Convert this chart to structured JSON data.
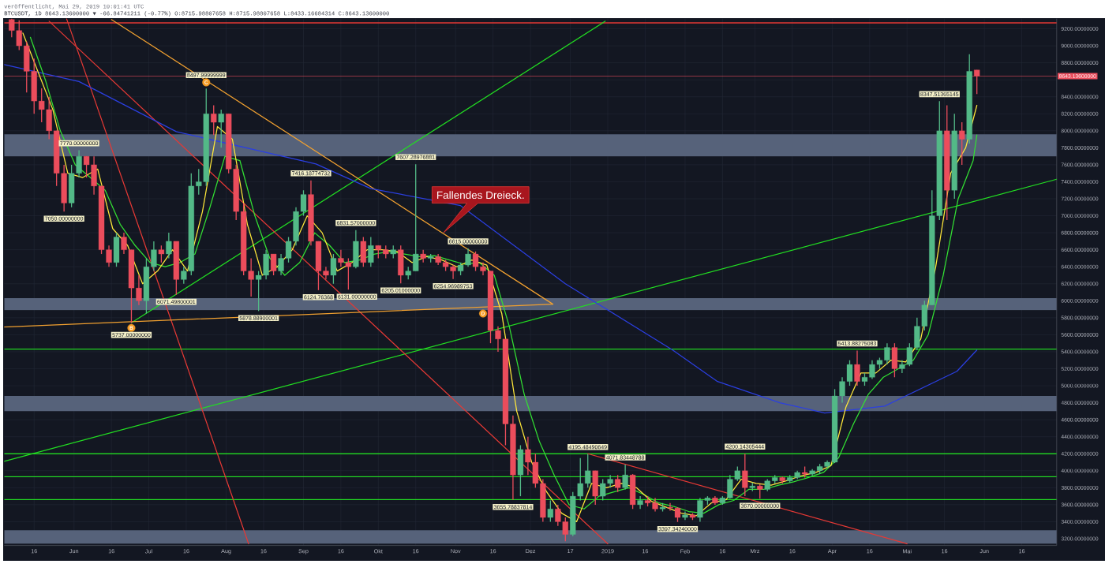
{
  "chart_data": {
    "type": "candlestick",
    "title": "veröffentlicht, Mai 29, 2019 10:01:41 UTC",
    "subtitle": "BTCUSDT, 1D 8643.13600000 ▼ -66.84741211 (-0.77%) O:8715.98807658 H:8715.98807658 L:8433.16684314 C:8643.13600000",
    "x": [
      "2018-05-07",
      "2018-05-10",
      "2018-05-13",
      "2018-05-16",
      "2018-05-19",
      "2018-05-22",
      "2018-05-25",
      "2018-05-28",
      "2018-05-31",
      "2018-06-03",
      "2018-06-06",
      "2018-06-09",
      "2018-06-12",
      "2018-06-15",
      "2018-06-18",
      "2018-06-21",
      "2018-06-24",
      "2018-06-27",
      "2018-06-30",
      "2018-07-03",
      "2018-07-06",
      "2018-07-09",
      "2018-07-12",
      "2018-07-15",
      "2018-07-18",
      "2018-07-21",
      "2018-07-24",
      "2018-07-27",
      "2018-07-30",
      "2018-08-02",
      "2018-08-05",
      "2018-08-08",
      "2018-08-11",
      "2018-08-14",
      "2018-08-17",
      "2018-08-20",
      "2018-08-23",
      "2018-08-26",
      "2018-08-29",
      "2018-09-01",
      "2018-09-04",
      "2018-09-07",
      "2018-09-10",
      "2018-09-13",
      "2018-09-16",
      "2018-09-19",
      "2018-09-22",
      "2018-09-25",
      "2018-09-28",
      "2018-10-01",
      "2018-10-04",
      "2018-10-07",
      "2018-10-10",
      "2018-10-13",
      "2018-10-16",
      "2018-10-19",
      "2018-10-22",
      "2018-10-25",
      "2018-10-28",
      "2018-10-31",
      "2018-11-03",
      "2018-11-06",
      "2018-11-09",
      "2018-11-12",
      "2018-11-15",
      "2018-11-18",
      "2018-11-21",
      "2018-11-24",
      "2018-11-27",
      "2018-11-30",
      "2018-12-03",
      "2018-12-06",
      "2018-12-09",
      "2018-12-12",
      "2018-12-15",
      "2018-12-18",
      "2018-12-21",
      "2018-12-24",
      "2018-12-27",
      "2018-12-30",
      "2019-01-02",
      "2019-01-05",
      "2019-01-08",
      "2019-01-11",
      "2019-01-14",
      "2019-01-17",
      "2019-01-20",
      "2019-01-23",
      "2019-01-26",
      "2019-01-29",
      "2019-02-01",
      "2019-02-04",
      "2019-02-07",
      "2019-02-10",
      "2019-02-13",
      "2019-02-16",
      "2019-02-19",
      "2019-02-22",
      "2019-02-25",
      "2019-02-28",
      "2019-03-03",
      "2019-03-06",
      "2019-03-09",
      "2019-03-12",
      "2019-03-15",
      "2019-03-18",
      "2019-03-21",
      "2019-03-24",
      "2019-03-27",
      "2019-03-30",
      "2019-04-02",
      "2019-04-05",
      "2019-04-08",
      "2019-04-11",
      "2019-04-14",
      "2019-04-17",
      "2019-04-20",
      "2019-04-23",
      "2019-04-26",
      "2019-04-29",
      "2019-05-02",
      "2019-05-05",
      "2019-05-08",
      "2019-05-11",
      "2019-05-14",
      "2019-05-17",
      "2019-05-20",
      "2019-05-23",
      "2019-05-26",
      "2019-05-29"
    ],
    "ohlc": [
      [
        9310,
        9320,
        9100,
        9180
      ],
      [
        9180,
        9300,
        8950,
        9000
      ],
      [
        9000,
        9050,
        8450,
        8700
      ],
      [
        8700,
        8850,
        8200,
        8350
      ],
      [
        8350,
        8500,
        8100,
        8250
      ],
      [
        8250,
        8400,
        7900,
        8000
      ],
      [
        8000,
        8000,
        7350,
        7500
      ],
      [
        7500,
        7600,
        7050,
        7150
      ],
      [
        7150,
        7600,
        7100,
        7500
      ],
      [
        7500,
        7770,
        7450,
        7700
      ],
      [
        7700,
        7700,
        7450,
        7600
      ],
      [
        7600,
        7700,
        7250,
        7350
      ],
      [
        7350,
        7350,
        6550,
        6600
      ],
      [
        6600,
        6650,
        6400,
        6450
      ],
      [
        6450,
        6800,
        6400,
        6750
      ],
      [
        6750,
        6800,
        6550,
        6600
      ],
      [
        6600,
        6600,
        5737,
        6150
      ],
      [
        6150,
        6300,
        5950,
        6000
      ],
      [
        6000,
        6500,
        5850,
        6400
      ],
      [
        6400,
        6700,
        6350,
        6600
      ],
      [
        6600,
        6650,
        6450,
        6550
      ],
      [
        6550,
        6800,
        6500,
        6700
      ],
      [
        6700,
        6700,
        6071,
        6250
      ],
      [
        6250,
        6400,
        6200,
        6350
      ],
      [
        6350,
        7500,
        6300,
        7350
      ],
      [
        7350,
        7550,
        7250,
        7400
      ],
      [
        7400,
        8498,
        7350,
        8200
      ],
      [
        8200,
        8300,
        7950,
        8100
      ],
      [
        8100,
        8250,
        7800,
        8200
      ],
      [
        8200,
        8200,
        7500,
        7550
      ],
      [
        7550,
        7600,
        6950,
        7050
      ],
      [
        7050,
        7150,
        6300,
        6350
      ],
      [
        6350,
        6500,
        6050,
        6250
      ],
      [
        6250,
        6350,
        5879,
        6300
      ],
      [
        6300,
        6600,
        6250,
        6550
      ],
      [
        6550,
        6550,
        6300,
        6350
      ],
      [
        6350,
        6550,
        6300,
        6500
      ],
      [
        6500,
        6750,
        6450,
        6700
      ],
      [
        6700,
        7100,
        6650,
        7050
      ],
      [
        7050,
        7300,
        7000,
        7250
      ],
      [
        7250,
        7416,
        6650,
        6700
      ],
      [
        6700,
        6700,
        6125,
        6350
      ],
      [
        6350,
        6400,
        6250,
        6300
      ],
      [
        6300,
        6550,
        6200,
        6500
      ],
      [
        6500,
        6600,
        6400,
        6450
      ],
      [
        6450,
        6500,
        6131,
        6400
      ],
      [
        6400,
        6832,
        6380,
        6700
      ],
      [
        6700,
        6750,
        6400,
        6450
      ],
      [
        6450,
        6750,
        6400,
        6650
      ],
      [
        6650,
        6650,
        6500,
        6600
      ],
      [
        6600,
        6650,
        6500,
        6550
      ],
      [
        6550,
        6650,
        6500,
        6600
      ],
      [
        6600,
        6650,
        6205,
        6300
      ],
      [
        6300,
        6400,
        6250,
        6350
      ],
      [
        6350,
        7607,
        6350,
        6550
      ],
      [
        6550,
        6600,
        6450,
        6500
      ],
      [
        6500,
        6550,
        6450,
        6520
      ],
      [
        6520,
        6550,
        6420,
        6450
      ],
      [
        6450,
        6480,
        6350,
        6400
      ],
      [
        6400,
        6420,
        6255,
        6350
      ],
      [
        6350,
        6450,
        6300,
        6420
      ],
      [
        6420,
        6615,
        6400,
        6550
      ],
      [
        6550,
        6580,
        6350,
        6400
      ],
      [
        6400,
        6450,
        6300,
        6350
      ],
      [
        6350,
        6350,
        5500,
        5650
      ],
      [
        5650,
        5700,
        5400,
        5550
      ],
      [
        5550,
        5550,
        4300,
        4550
      ],
      [
        4550,
        4650,
        3656,
        3950
      ],
      [
        3950,
        4300,
        3700,
        4250
      ],
      [
        4250,
        4400,
        3950,
        4100
      ],
      [
        4100,
        4200,
        3800,
        3850
      ],
      [
        3850,
        3900,
        3400,
        3450
      ],
      [
        3450,
        3650,
        3400,
        3550
      ],
      [
        3550,
        3600,
        3350,
        3400
      ],
      [
        3400,
        3450,
        3170,
        3250
      ],
      [
        3250,
        3750,
        3230,
        3700
      ],
      [
        3700,
        4150,
        3650,
        3850
      ],
      [
        3850,
        4195,
        3800,
        4000
      ],
      [
        4000,
        4000,
        3600,
        3700
      ],
      [
        3700,
        3900,
        3650,
        3850
      ],
      [
        3850,
        3950,
        3800,
        3900
      ],
      [
        3900,
        3950,
        3750,
        3800
      ],
      [
        3800,
        4072,
        3780,
        3950
      ],
      [
        3950,
        3960,
        3550,
        3600
      ],
      [
        3600,
        3700,
        3550,
        3650
      ],
      [
        3650,
        3700,
        3580,
        3620
      ],
      [
        3620,
        3680,
        3520,
        3550
      ],
      [
        3550,
        3620,
        3520,
        3570
      ],
      [
        3570,
        3620,
        3530,
        3560
      ],
      [
        3560,
        3570,
        3397,
        3450
      ],
      [
        3450,
        3520,
        3420,
        3480
      ],
      [
        3480,
        3500,
        3420,
        3450
      ],
      [
        3450,
        3680,
        3400,
        3650
      ],
      [
        3650,
        3700,
        3600,
        3680
      ],
      [
        3680,
        3700,
        3600,
        3620
      ],
      [
        3620,
        3700,
        3600,
        3680
      ],
      [
        3680,
        3950,
        3670,
        3900
      ],
      [
        3900,
        4050,
        3880,
        4000
      ],
      [
        4000,
        4200,
        3700,
        3800
      ],
      [
        3800,
        3860,
        3760,
        3820
      ],
      [
        3820,
        3840,
        3670,
        3780
      ],
      [
        3780,
        3900,
        3760,
        3880
      ],
      [
        3880,
        3950,
        3850,
        3920
      ],
      [
        3920,
        3930,
        3850,
        3880
      ],
      [
        3880,
        3950,
        3860,
        3920
      ],
      [
        3920,
        4000,
        3900,
        3980
      ],
      [
        3980,
        4050,
        3920,
        3960
      ],
      [
        3960,
        4020,
        3940,
        4000
      ],
      [
        4000,
        4080,
        3960,
        4050
      ],
      [
        4050,
        4120,
        4030,
        4100
      ],
      [
        4100,
        4960,
        4090,
        4880
      ],
      [
        4880,
        5100,
        4800,
        5050
      ],
      [
        5050,
        5300,
        5000,
        5250
      ],
      [
        5250,
        5414,
        5000,
        5050
      ],
      [
        5050,
        5150,
        5000,
        5100
      ],
      [
        5100,
        5300,
        5080,
        5250
      ],
      [
        5250,
        5330,
        5200,
        5300
      ],
      [
        5300,
        5500,
        5250,
        5450
      ],
      [
        5450,
        5500,
        5100,
        5200
      ],
      [
        5200,
        5300,
        5150,
        5250
      ],
      [
        5250,
        5500,
        5230,
        5450
      ],
      [
        5450,
        5800,
        5420,
        5700
      ],
      [
        5700,
        6000,
        5650,
        5950
      ],
      [
        5950,
        7300,
        5950,
        7000
      ],
      [
        7000,
        8348,
        6950,
        8000
      ],
      [
        8000,
        8300,
        6950,
        7300
      ],
      [
        7300,
        8200,
        7200,
        8000
      ],
      [
        8000,
        8100,
        7600,
        7900
      ],
      [
        7900,
        8900,
        7850,
        8700
      ],
      [
        8716,
        8716,
        8433,
        8643
      ]
    ],
    "colors": [
      "#eb4d5c",
      "#eb4d5c",
      "#eb4d5c",
      "#eb4d5c",
      "#eb4d5c",
      "#eb4d5c",
      "#eb4d5c",
      "#eb4d5c",
      "#53b987",
      "#53b987",
      "#eb4d5c",
      "#eb4d5c",
      "#eb4d5c",
      "#eb4d5c",
      "#53b987",
      "#eb4d5c",
      "#eb4d5c",
      "#eb4d5c",
      "#53b987",
      "#53b987",
      "#eb4d5c",
      "#53b987",
      "#eb4d5c",
      "#53b987",
      "#53b987",
      "#53b987",
      "#53b987",
      "#eb4d5c",
      "#53b987",
      "#eb4d5c",
      "#eb4d5c",
      "#eb4d5c",
      "#eb4d5c",
      "#53b987",
      "#53b987",
      "#eb4d5c",
      "#53b987",
      "#53b987",
      "#53b987",
      "#53b987",
      "#eb4d5c",
      "#eb4d5c",
      "#eb4d5c",
      "#53b987",
      "#eb4d5c",
      "#eb4d5c",
      "#53b987",
      "#eb4d5c",
      "#53b987",
      "#eb4d5c",
      "#eb4d5c",
      "#53b987",
      "#eb4d5c",
      "#53b987",
      "#53b987",
      "#eb4d5c",
      "#53b987",
      "#eb4d5c",
      "#eb4d5c",
      "#eb4d5c",
      "#53b987",
      "#53b987",
      "#eb4d5c",
      "#eb4d5c",
      "#eb4d5c",
      "#eb4d5c",
      "#eb4d5c",
      "#eb4d5c",
      "#53b987",
      "#eb4d5c",
      "#eb4d5c",
      "#eb4d5c",
      "#53b987",
      "#eb4d5c",
      "#eb4d5c",
      "#53b987",
      "#53b987",
      "#53b987",
      "#eb4d5c",
      "#53b987",
      "#53b987",
      "#eb4d5c",
      "#53b987",
      "#eb4d5c",
      "#53b987",
      "#eb4d5c",
      "#eb4d5c",
      "#53b987",
      "#eb4d5c",
      "#eb4d5c",
      "#53b987",
      "#eb4d5c",
      "#53b987",
      "#53b987",
      "#eb4d5c",
      "#53b987",
      "#53b987",
      "#53b987",
      "#eb4d5c",
      "#53b987",
      "#eb4d5c",
      "#53b987",
      "#53b987",
      "#eb4d5c",
      "#53b987",
      "#53b987",
      "#eb4d5c",
      "#53b987",
      "#53b987",
      "#53b987",
      "#53b987",
      "#53b987",
      "#53b987",
      "#eb4d5c",
      "#53b987",
      "#53b987",
      "#53b987",
      "#53b987",
      "#eb4d5c",
      "#53b987",
      "#53b987",
      "#53b987",
      "#53b987",
      "#53b987",
      "#53b987",
      "#eb4d5c",
      "#53b987",
      "#eb4d5c",
      "#53b987",
      "#eb4d5c"
    ],
    "series": [
      {
        "type": "line",
        "x": [
          "2018-05-04",
          "2019-06-30"
        ],
        "values": [
          4110,
          7430
        ],
        "color": "#22dd22"
      },
      {
        "type": "line",
        "x": [
          "2018-06-24",
          "2018-12-31"
        ],
        "values": [
          5740,
          9290
        ],
        "color": "#22dd22"
      },
      {
        "type": "line",
        "x": [
          "2018-05-29",
          "2018-08-10"
        ],
        "values": [
          9320,
          3140
        ],
        "color": "#e53935"
      },
      {
        "type": "line",
        "x": [
          "2018-05-22",
          "2019-01-01"
        ],
        "values": [
          9290,
          3140
        ],
        "color": "#e53935"
      },
      {
        "type": "line",
        "x": [
          "2018-12-24",
          "2019-05-01"
        ],
        "values": [
          4200,
          3140
        ],
        "color": "#e53935"
      },
      {
        "type": "line",
        "x": [
          "2018-06-16",
          "2018-12-10"
        ],
        "values": [
          9310,
          5960
        ],
        "color": "#f0a030"
      },
      {
        "type": "line",
        "x": [
          "2018-05-04",
          "2018-12-10"
        ],
        "values": [
          5690,
          5960
        ],
        "color": "#f0a030"
      },
      {
        "type": "line",
        "x": [
          "2018-05-04",
          "2018-06-03",
          "2018-07-12",
          "2018-09-06",
          "2018-09-28",
          "2018-11-03",
          "2018-12-15",
          "2019-01-27",
          "2019-02-14",
          "2019-03-11",
          "2019-03-29",
          "2019-04-22",
          "2019-05-21",
          "2019-05-29"
        ],
        "values": [
          8780,
          8580,
          7990,
          7610,
          7320,
          7120,
          6200,
          5420,
          5050,
          4800,
          4680,
          4760,
          5170,
          5420
        ],
        "color": "#2b3fe0"
      },
      {
        "type": "line",
        "x": [
          "2018-05-14T12:00",
          "2018-05-20T12:00",
          "2018-05-26T12:00",
          "2018-06-01T12:00",
          "2018-06-07T12:00",
          "2018-06-13T12:00",
          "2018-06-19T12:00",
          "2018-06-25T12:00",
          "2018-07-01T12:00",
          "2018-07-07T12:00",
          "2018-07-13T12:00",
          "2018-07-19T12:00",
          "2018-07-25T12:00",
          "2018-07-31T12:00",
          "2018-08-06T12:00",
          "2018-08-12T12:00",
          "2018-08-18T12:00",
          "2018-08-24T12:00",
          "2018-08-30T12:00",
          "2018-09-05T12:00",
          "2018-09-11T12:00",
          "2018-09-17T12:00",
          "2018-09-23T12:00",
          "2018-09-29T12:00",
          "2018-10-05T12:00",
          "2018-10-11T12:00",
          "2018-10-17T12:00",
          "2018-10-23T12:00",
          "2018-10-29T12:00",
          "2018-11-04T12:00",
          "2018-11-10T12:00",
          "2018-11-16T12:00",
          "2018-11-22T12:00",
          "2018-11-28T12:00",
          "2018-12-04T12:00",
          "2018-12-10T12:00",
          "2018-12-16T12:00",
          "2018-12-22T12:00",
          "2018-12-28T12:00",
          "2019-01-03T12:00",
          "2019-01-09T12:00",
          "2019-01-15T12:00",
          "2019-01-21T12:00",
          "2019-01-27T12:00",
          "2019-02-02T12:00",
          "2019-02-08T12:00",
          "2019-02-14T12:00",
          "2019-02-20T12:00",
          "2019-02-26T12:00",
          "2019-03-04T12:00",
          "2019-03-10T12:00",
          "2019-03-16T12:00",
          "2019-03-22T12:00",
          "2019-03-28T12:00",
          "2019-04-03T12:00",
          "2019-04-09T12:00",
          "2019-04-15T12:00",
          "2019-04-21T12:00",
          "2019-04-27T12:00",
          "2019-05-03T12:00",
          "2019-05-09T12:00",
          "2019-05-15T12:00",
          "2019-05-21T12:00",
          "2019-05-27T12:00",
          "2019-05-29"
        ],
        "values": [
          9100,
          8600,
          8000,
          7600,
          7450,
          7300,
          6900,
          6650,
          6450,
          6400,
          6450,
          6550,
          7100,
          7700,
          7650,
          7000,
          6500,
          6300,
          6450,
          6800,
          6650,
          6450,
          6480,
          6550,
          6580,
          6550,
          6520,
          6530,
          6480,
          6430,
          6450,
          6300,
          5700,
          4900,
          4350,
          3950,
          3600,
          3550,
          3700,
          3750,
          3800,
          3720,
          3620,
          3580,
          3520,
          3500,
          3600,
          3650,
          3780,
          3780,
          3830,
          3870,
          3920,
          3980,
          4150,
          4550,
          4900,
          5100,
          5200,
          5300,
          5600,
          6300,
          7200,
          7650,
          7950
        ],
        "color": "#33e033"
      },
      {
        "type": "line",
        "x": [
          "2018-05-11T12:00",
          "2018-05-17T12:00",
          "2018-05-23T12:00",
          "2018-05-29T12:00",
          "2018-06-04T12:00",
          "2018-06-10T12:00",
          "2018-06-16T12:00",
          "2018-06-22T12:00",
          "2018-06-28T12:00",
          "2018-07-04T12:00",
          "2018-07-10T12:00",
          "2018-07-16T12:00",
          "2018-07-22T12:00",
          "2018-07-28T12:00",
          "2018-08-03T12:00",
          "2018-08-09T12:00",
          "2018-08-15T12:00",
          "2018-08-21T12:00",
          "2018-08-27T12:00",
          "2018-09-02T12:00",
          "2018-09-08T12:00",
          "2018-09-14T12:00",
          "2018-09-20T12:00",
          "2018-09-26T12:00",
          "2018-10-02T12:00",
          "2018-10-08T12:00",
          "2018-10-14T12:00",
          "2018-10-20T12:00",
          "2018-10-26T12:00",
          "2018-11-01T12:00",
          "2018-11-07T12:00",
          "2018-11-13T12:00",
          "2018-11-19T12:00",
          "2018-11-25T12:00",
          "2018-12-01T12:00",
          "2018-12-07T12:00",
          "2018-12-13T12:00",
          "2018-12-19T12:00",
          "2018-12-25T12:00",
          "2018-12-31T12:00",
          "2019-01-06T12:00",
          "2019-01-12T12:00",
          "2019-01-18T12:00",
          "2019-01-24T12:00",
          "2019-01-30T12:00",
          "2019-02-05T12:00",
          "2019-02-11T12:00",
          "2019-02-17T12:00",
          "2019-02-23T12:00",
          "2019-03-01T12:00",
          "2019-03-07T12:00",
          "2019-03-13T12:00",
          "2019-03-19T12:00",
          "2019-03-25T12:00",
          "2019-03-31T12:00",
          "2019-04-06T12:00",
          "2019-04-12T12:00",
          "2019-04-18T12:00",
          "2019-04-24T12:00",
          "2019-04-30T12:00",
          "2019-05-06T12:00",
          "2019-05-12T12:00",
          "2019-05-18T12:00",
          "2019-05-24T12:00",
          "2019-05-29"
        ],
        "values": [
          9150,
          8700,
          8250,
          7500,
          7450,
          7550,
          6850,
          6650,
          6200,
          6350,
          6600,
          6350,
          7050,
          8050,
          7900,
          6900,
          6300,
          6400,
          6600,
          7000,
          6800,
          6350,
          6450,
          6600,
          6600,
          6580,
          6450,
          6520,
          6480,
          6400,
          6480,
          6420,
          5850,
          4700,
          4100,
          3750,
          3500,
          3400,
          3850,
          3800,
          3850,
          3800,
          3640,
          3570,
          3500,
          3470,
          3620,
          3660,
          3900,
          3850,
          3830,
          3880,
          3940,
          3980,
          4060,
          4750,
          5150,
          5150,
          5300,
          5280,
          5550,
          6400,
          7500,
          7800,
          8300
        ],
        "color": "#ffe83a"
      },
      {
        "type": "scatter",
        "name": "B",
        "x": [
          "2018-06-24"
        ],
        "values": [
          5680
        ],
        "color": "#f59b23",
        "marker": "circle"
      },
      {
        "type": "scatter",
        "name": "C",
        "x": [
          "2018-07-24"
        ],
        "values": [
          8570
        ],
        "color": "#f59b23",
        "marker": "circle"
      },
      {
        "type": "scatter",
        "name": "D",
        "x": [
          "2018-11-12"
        ],
        "values": [
          5850
        ],
        "color": "#f59b23",
        "marker": "circle"
      }
    ],
    "xlim": [
      "2018-05-04",
      "2019-06-30"
    ],
    "ylim": [
      3120,
      9320
    ],
    "xticks": [
      {
        "value": "2018-05-16",
        "label": "16"
      },
      {
        "value": "2018-06-01",
        "label": "Jun"
      },
      {
        "value": "2018-06-16",
        "label": "16"
      },
      {
        "value": "2018-07-01",
        "label": "Jul"
      },
      {
        "value": "2018-07-16",
        "label": "16"
      },
      {
        "value": "2018-08-01",
        "label": "Aug"
      },
      {
        "value": "2018-08-16",
        "label": "16"
      },
      {
        "value": "2018-09-01",
        "label": "Sep"
      },
      {
        "value": "2018-09-16",
        "label": "16"
      },
      {
        "value": "2018-10-01",
        "label": "Okt"
      },
      {
        "value": "2018-10-16",
        "label": "16"
      },
      {
        "value": "2018-11-01",
        "label": "Nov"
      },
      {
        "value": "2018-11-16",
        "label": "16"
      },
      {
        "value": "2018-12-01",
        "label": "Dez"
      },
      {
        "value": "2018-12-17",
        "label": "17"
      },
      {
        "value": "2019-01-01",
        "label": "2019"
      },
      {
        "value": "2019-01-16",
        "label": "16"
      },
      {
        "value": "2019-02-01",
        "label": "Feb"
      },
      {
        "value": "2019-02-16",
        "label": "16"
      },
      {
        "value": "2019-03-01",
        "label": "Mrz"
      },
      {
        "value": "2019-03-16",
        "label": "16"
      },
      {
        "value": "2019-04-01",
        "label": "Apr"
      },
      {
        "value": "2019-04-16",
        "label": "16"
      },
      {
        "value": "2019-05-01",
        "label": "Mai"
      },
      {
        "value": "2019-05-16",
        "label": "16"
      },
      {
        "value": "2019-06-01",
        "label": "Jun"
      },
      {
        "value": "2019-06-16",
        "label": "16"
      }
    ],
    "yticks": [
      {
        "value": 3200,
        "label": "3200.00000000"
      },
      {
        "value": 3400,
        "label": "3400.00000000"
      },
      {
        "value": 3600,
        "label": "3600.00000000"
      },
      {
        "value": 3800,
        "label": "3800.00000000"
      },
      {
        "value": 4000,
        "label": "4000.00000000"
      },
      {
        "value": 4200,
        "label": "4200.00000000"
      },
      {
        "value": 4400,
        "label": "4400.00000000"
      },
      {
        "value": 4600,
        "label": "4600.00000000"
      },
      {
        "value": 4800,
        "label": "4800.00000000"
      },
      {
        "value": 5000,
        "label": "5000.00000000"
      },
      {
        "value": 5200,
        "label": "5200.00000000"
      },
      {
        "value": 5400,
        "label": "5400.00000000"
      },
      {
        "value": 5600,
        "label": "5600.00000000"
      },
      {
        "value": 5800,
        "label": "5800.00000000"
      },
      {
        "value": 6000,
        "label": "6000.00000000"
      },
      {
        "value": 6200,
        "label": "6200.00000000"
      },
      {
        "value": 6400,
        "label": "6400.00000000"
      },
      {
        "value": 6600,
        "label": "6600.00000000"
      },
      {
        "value": 6800,
        "label": "6800.00000000"
      },
      {
        "value": 7000,
        "label": "7000.00000000"
      },
      {
        "value": 7200,
        "label": "7200.00000000"
      },
      {
        "value": 7400,
        "label": "7400.00000000"
      },
      {
        "value": 7600,
        "label": "7600.00000000"
      },
      {
        "value": 7800,
        "label": "7800.00000000"
      },
      {
        "value": 8000,
        "label": "8000.00000000"
      },
      {
        "value": 8200,
        "label": "8200.00000000"
      },
      {
        "value": 8400,
        "label": "8400.00000000"
      },
      {
        "value": 8600,
        "label": null
      },
      {
        "value": 8800,
        "label": "8800.00000000"
      },
      {
        "value": 9000,
        "label": "9000.00000000"
      },
      {
        "value": 9200,
        "label": "9200.00000000"
      }
    ],
    "grid": true,
    "ref_lines": [
      {
        "axis": "y",
        "value": 9270,
        "color": "#e53935"
      },
      {
        "axis": "y",
        "value": 8643.136,
        "label": "8643.13600000",
        "color": "#eb4d5c"
      },
      {
        "axis": "y",
        "value": 5430,
        "color": "#22dd22"
      },
      {
        "axis": "y",
        "value": 4200,
        "color": "#22dd22"
      },
      {
        "axis": "y",
        "value": 3930,
        "color": "#22dd22"
      },
      {
        "axis": "y",
        "value": 3660,
        "color": "#22dd22"
      }
    ],
    "bands": [
      {
        "axis": "y",
        "from": 7700,
        "to": 7960,
        "color": "#56627a"
      },
      {
        "axis": "y",
        "from": 5890,
        "to": 6030,
        "color": "#56627a"
      },
      {
        "axis": "y",
        "from": 4700,
        "to": 4880,
        "color": "#56627a"
      },
      {
        "axis": "y",
        "from": 3140,
        "to": 3300,
        "color": "#56627a"
      }
    ],
    "annotations": [
      "Fallendes Dreieck.",
      {
        "text": "7050.00000000",
        "x": "2018-05-28",
        "y": 7050
      },
      {
        "text": "7770.00000000",
        "x": "2018-06-03",
        "y": 7770
      },
      {
        "text": "5737.00000000",
        "x": "2018-06-24",
        "y": 5737
      },
      {
        "text": "6071.49800001",
        "x": "2018-07-12",
        "y": 6071
      },
      {
        "text": "8497.99999999",
        "x": "2018-07-24",
        "y": 8498
      },
      {
        "text": "5878.88900001",
        "x": "2018-08-14",
        "y": 5879
      },
      {
        "text": "7416.18774732",
        "x": "2018-09-04",
        "y": 7416
      },
      {
        "text": "6124.76368",
        "x": "2018-09-07",
        "y": 6125
      },
      {
        "text": "6131.00000000",
        "x": "2018-09-19",
        "y": 6131
      },
      {
        "text": "6831.57000000",
        "x": "2018-09-22",
        "y": 6832
      },
      {
        "text": "6205.01000000",
        "x": "2018-10-10",
        "y": 6205
      },
      {
        "text": "7607.28976881",
        "x": "2018-10-16",
        "y": 7607
      },
      {
        "text": "6254.96989753",
        "x": "2018-10-31",
        "y": 6255
      },
      {
        "text": "6615.00000000",
        "x": "2018-11-06",
        "y": 6615
      },
      {
        "text": "3655.78837814",
        "x": "2018-11-24",
        "y": 3656
      },
      {
        "text": "4195.48490649",
        "x": "2018-12-24",
        "y": 4195
      },
      {
        "text": "4071.83448788",
        "x": "2019-01-08",
        "y": 4072
      },
      {
        "text": "3397.34240000",
        "x": "2019-01-29",
        "y": 3397
      },
      {
        "text": "4200.14305444",
        "x": "2019-02-25",
        "y": 4200
      },
      {
        "text": "3670.00000000",
        "x": "2019-03-03",
        "y": 3670
      },
      {
        "text": "5413.88275083",
        "x": "2019-04-11",
        "y": 5414
      },
      {
        "text": "8347.51365145",
        "x": "2019-05-14",
        "y": 8348
      }
    ]
  }
}
